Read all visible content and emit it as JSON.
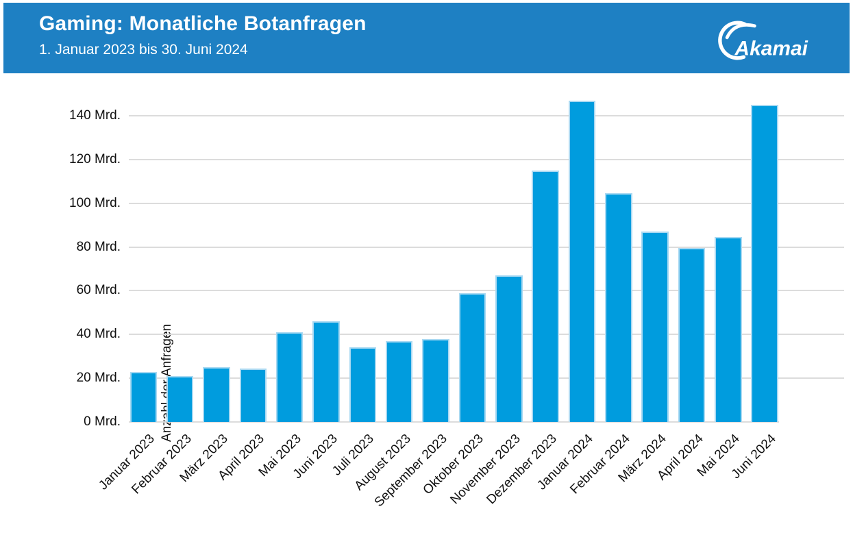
{
  "header": {
    "title": "Gaming: Monatliche Botanfragen",
    "subtitle": "1. Januar 2023 bis 30. Juni 2024",
    "logo_text": "Akamai",
    "background_color": "#1E80C3"
  },
  "chart_data": {
    "type": "bar",
    "title": "Gaming: Monatliche Botanfragen",
    "subtitle": "1. Januar 2023 bis 30. Juni 2024",
    "categories": [
      "Januar 2023",
      "Februar 2023",
      "März 2023",
      "April 2023",
      "Mai 2023",
      "Juni 2023",
      "Juli 2023",
      "August 2023",
      "September 2023",
      "Oktober 2023",
      "November 2023",
      "Dezember 2023",
      "Januar 2024",
      "Februar 2024",
      "März 2024",
      "April 2024",
      "Mai 2024",
      "Juni 2024"
    ],
    "values": [
      23,
      21,
      25,
      24.5,
      41,
      46,
      34,
      37,
      38,
      59,
      67,
      115,
      147,
      104.5,
      87,
      79.5,
      84.5,
      145
    ],
    "unit": "Mrd.",
    "xlabel": "",
    "ylabel": "Anzahl der Anfragen",
    "ylim": [
      0,
      140
    ],
    "y_ticks": [
      0,
      20,
      40,
      60,
      80,
      100,
      120,
      140
    ],
    "y_tick_labels": [
      "0 Mrd.",
      "20 Mrd.",
      "40 Mrd.",
      "60 Mrd.",
      "80 Mrd.",
      "100 Mrd.",
      "120 Mrd.",
      "140 Mrd."
    ],
    "grid": true,
    "legend": false,
    "bar_color": "#009CDE",
    "bar_edge_color": "#A9D9F2",
    "grid_color": "#DCDCDC",
    "text_color": "#111111"
  }
}
